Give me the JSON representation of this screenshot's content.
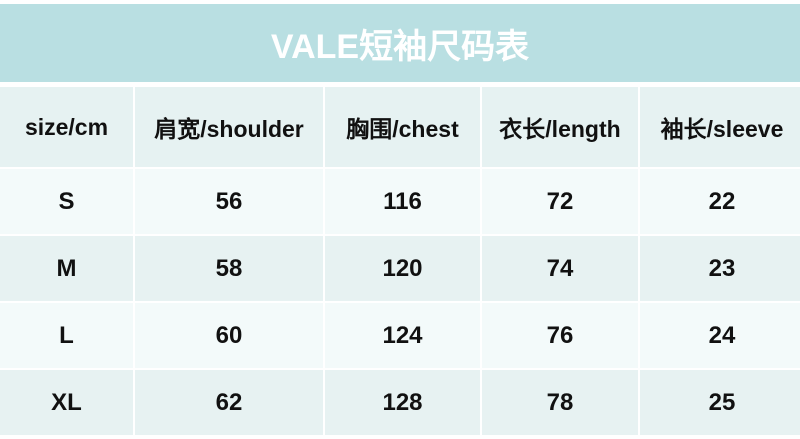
{
  "title": "VALE短袖尺码表",
  "colors": {
    "title_band": "#b9dfe2",
    "header_row": "#e6f2f2",
    "row_light": "#f3fafa",
    "row_dark": "#e7f2f2",
    "title_text": "#ffffff"
  },
  "columns": [
    "size/cm",
    "肩宽/shoulder",
    "胸围/chest",
    "衣长/length",
    "袖长/sleeve"
  ],
  "rows": [
    [
      "S",
      "56",
      "116",
      "72",
      "22"
    ],
    [
      "M",
      "58",
      "120",
      "74",
      "23"
    ],
    [
      "L",
      "60",
      "124",
      "76",
      "24"
    ],
    [
      "XL",
      "62",
      "128",
      "78",
      "25"
    ]
  ]
}
